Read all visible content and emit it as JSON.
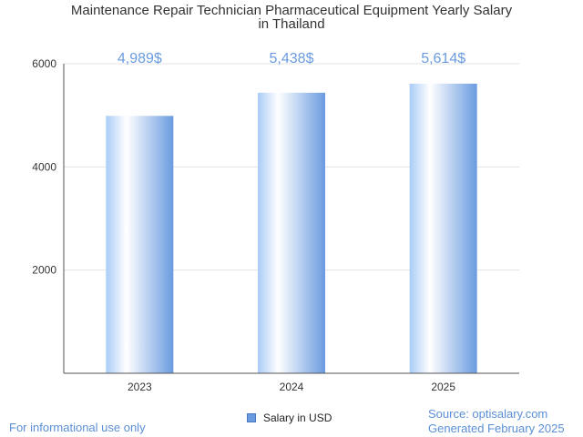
{
  "title_line1": "Maintenance Repair Technician Pharmaceutical Equipment Yearly Salary",
  "title_line2": "in Thailand",
  "legend": {
    "label": "Salary in USD"
  },
  "footer": {
    "left": "For informational use only",
    "source": "Source: optisalary.com",
    "generated": "Generated February 2025"
  },
  "colors": {
    "bar_dark": "#6a9be0",
    "bar_light": "#ffffff",
    "value_label": "#6a9be0"
  },
  "chart_data": {
    "type": "bar",
    "categories": [
      "2023",
      "2024",
      "2025"
    ],
    "values": [
      4989,
      5438,
      5614
    ],
    "value_labels": [
      "4,989$",
      "5,438$",
      "5,614$"
    ],
    "ylim": [
      0,
      6000
    ],
    "yticks": [
      2000,
      4000,
      6000
    ],
    "grid": true,
    "legend_position": "bottom"
  }
}
